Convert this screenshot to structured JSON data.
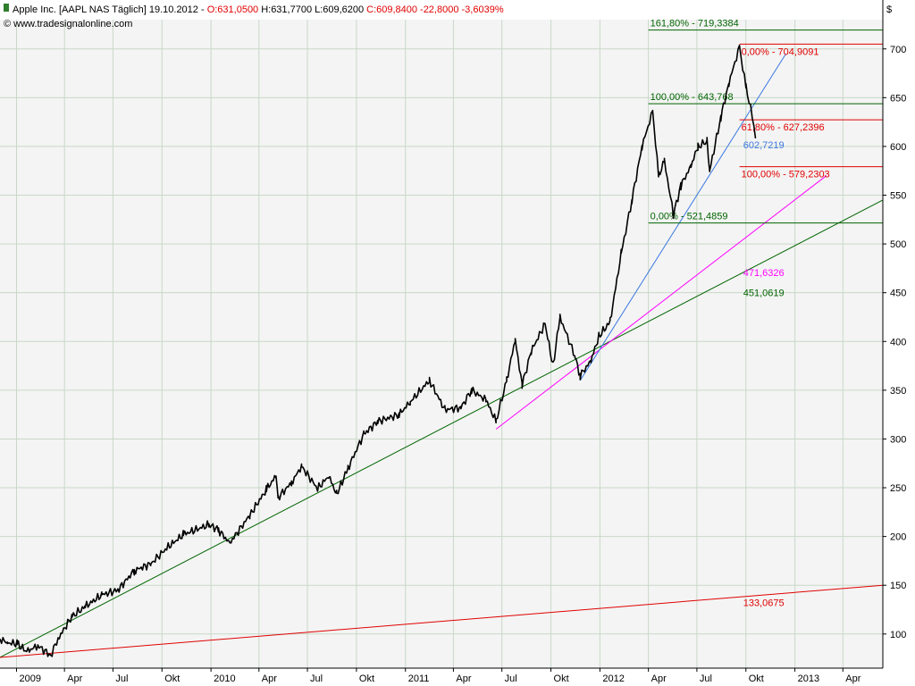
{
  "header": {
    "title": "Apple Inc. [AAPL NAS  Täglich] 19.10.2012 - ",
    "ohlc_open": "O:631,0500",
    "ohlc_high": "H:631,7700",
    "ohlc_low": "L:609,6200",
    "ohlc_close": "C:609,8400",
    "change": "-22,8000 -3,6039%",
    "copyright": "© www.tradesignalonline.com",
    "currency": "$"
  },
  "colors": {
    "plot_bg": "#f4f4f4",
    "grid": "#c8d8c8",
    "price": "#000000",
    "trend_green": "#006400",
    "trend_red": "#e00000",
    "trend_magenta": "#ff00ff",
    "trend_blue": "#3a78e0",
    "fib_green": "#006400",
    "fib_red": "#e00000",
    "header_red": "#e00000"
  },
  "chart_data": {
    "type": "line",
    "series_kind": "daily price (OHLC bars)",
    "ylim": [
      65,
      730
    ],
    "y_ticks": [
      100,
      150,
      200,
      250,
      300,
      350,
      400,
      450,
      500,
      550,
      600,
      650,
      700
    ],
    "y_tick_labels": [
      "100",
      "150",
      "200",
      "250",
      "300",
      "350",
      "400",
      "450",
      "500",
      "550",
      "600",
      "650",
      "700"
    ],
    "x_range": [
      "2008-12-01",
      "2013-06-15"
    ],
    "x_ticks": [
      {
        "label": "2009",
        "date": "2009-01-01"
      },
      {
        "label": "Apr",
        "date": "2009-04-01"
      },
      {
        "label": "Jul",
        "date": "2009-07-01"
      },
      {
        "label": "Okt",
        "date": "2009-10-01"
      },
      {
        "label": "2010",
        "date": "2010-01-01"
      },
      {
        "label": "Apr",
        "date": "2010-04-01"
      },
      {
        "label": "Jul",
        "date": "2010-07-01"
      },
      {
        "label": "Okt",
        "date": "2010-10-01"
      },
      {
        "label": "2011",
        "date": "2011-01-01"
      },
      {
        "label": "Apr",
        "date": "2011-04-01"
      },
      {
        "label": "Jul",
        "date": "2011-07-01"
      },
      {
        "label": "Okt",
        "date": "2011-10-01"
      },
      {
        "label": "2012",
        "date": "2012-01-01"
      },
      {
        "label": "Apr",
        "date": "2012-04-01"
      },
      {
        "label": "Jul",
        "date": "2012-07-01"
      },
      {
        "label": "Okt",
        "date": "2012-10-01"
      },
      {
        "label": "2013",
        "date": "2013-01-01"
      },
      {
        "label": "Apr",
        "date": "2013-04-01"
      }
    ],
    "price": [
      [
        "2008-12-01",
        95
      ],
      [
        "2008-12-15",
        91
      ],
      [
        "2009-01-02",
        90
      ],
      [
        "2009-01-20",
        82
      ],
      [
        "2009-02-10",
        88
      ],
      [
        "2009-03-06",
        78
      ],
      [
        "2009-03-20",
        95
      ],
      [
        "2009-04-15",
        118
      ],
      [
        "2009-05-10",
        128
      ],
      [
        "2009-06-10",
        140
      ],
      [
        "2009-07-10",
        145
      ],
      [
        "2009-08-10",
        165
      ],
      [
        "2009-09-10",
        172
      ],
      [
        "2009-10-10",
        188
      ],
      [
        "2009-11-10",
        202
      ],
      [
        "2009-12-28",
        212
      ],
      [
        "2010-01-15",
        207
      ],
      [
        "2010-02-05",
        193
      ],
      [
        "2010-03-15",
        222
      ],
      [
        "2010-04-15",
        248
      ],
      [
        "2010-05-03",
        262
      ],
      [
        "2010-05-07",
        240
      ],
      [
        "2010-06-01",
        255
      ],
      [
        "2010-06-20",
        272
      ],
      [
        "2010-07-20",
        249
      ],
      [
        "2010-08-10",
        262
      ],
      [
        "2010-08-25",
        243
      ],
      [
        "2010-09-15",
        270
      ],
      [
        "2010-10-15",
        305
      ],
      [
        "2010-11-10",
        318
      ],
      [
        "2010-12-20",
        325
      ],
      [
        "2011-01-10",
        338
      ],
      [
        "2011-02-15",
        360
      ],
      [
        "2011-03-16",
        330
      ],
      [
        "2011-04-15",
        332
      ],
      [
        "2011-05-05",
        350
      ],
      [
        "2011-06-01",
        340
      ],
      [
        "2011-06-20",
        318
      ],
      [
        "2011-07-10",
        360
      ],
      [
        "2011-07-26",
        402
      ],
      [
        "2011-08-08",
        355
      ],
      [
        "2011-08-25",
        390
      ],
      [
        "2011-09-20",
        418
      ],
      [
        "2011-10-05",
        375
      ],
      [
        "2011-10-18",
        425
      ],
      [
        "2011-11-15",
        385
      ],
      [
        "2011-11-25",
        365
      ],
      [
        "2011-12-15",
        380
      ],
      [
        "2011-12-30",
        405
      ],
      [
        "2012-01-20",
        420
      ],
      [
        "2012-02-10",
        490
      ],
      [
        "2012-03-01",
        545
      ],
      [
        "2012-03-20",
        600
      ],
      [
        "2012-04-09",
        636
      ],
      [
        "2012-04-20",
        570
      ],
      [
        "2012-05-01",
        585
      ],
      [
        "2012-05-18",
        530
      ],
      [
        "2012-06-01",
        560
      ],
      [
        "2012-06-20",
        580
      ],
      [
        "2012-07-03",
        600
      ],
      [
        "2012-07-20",
        605
      ],
      [
        "2012-07-25",
        575
      ],
      [
        "2012-08-15",
        630
      ],
      [
        "2012-08-30",
        665
      ],
      [
        "2012-09-19",
        702
      ],
      [
        "2012-10-01",
        660
      ],
      [
        "2012-10-10",
        640
      ],
      [
        "2012-10-19",
        610
      ]
    ],
    "trendlines": [
      {
        "color": "trend_green",
        "from": [
          "2008-12-01",
          76
        ],
        "to": [
          "2013-06-15",
          545
        ]
      },
      {
        "color": "trend_red",
        "from": [
          "2008-12-01",
          76
        ],
        "to": [
          "2013-06-15",
          150
        ]
      },
      {
        "color": "trend_magenta",
        "from": [
          "2011-06-20",
          310
        ],
        "to": [
          "2013-03-01",
          570
        ]
      },
      {
        "color": "trend_blue",
        "from": [
          "2011-11-25",
          360
        ],
        "to": [
          "2012-12-15",
          695
        ]
      }
    ],
    "fib_levels": [
      {
        "value": 719.3384,
        "label": "161,80% - 719,3384",
        "color": "fib_green",
        "start": "2012-04-01"
      },
      {
        "value": 704.9091,
        "label": "0,00% - 704,9091",
        "color": "fib_red",
        "start": "2012-09-19"
      },
      {
        "value": 643.768,
        "label": "100,00% - 643,768",
        "color": "fib_green",
        "start": "2012-04-01"
      },
      {
        "value": 627.2396,
        "label": "61,80% - 627,2396",
        "color": "fib_red",
        "start": "2012-09-19"
      },
      {
        "value": 579.2303,
        "label": "100,00% - 579,2303",
        "color": "fib_red",
        "start": "2012-09-19"
      },
      {
        "value": 521.4859,
        "label": "0,00% - 521,4859",
        "color": "fib_green",
        "start": "2012-04-01"
      }
    ],
    "annotations": [
      {
        "text": "602,7219",
        "date": "2012-10-01",
        "value": 602.7219,
        "color": "trend_blue"
      },
      {
        "text": "471,6326",
        "date": "2012-10-01",
        "value": 471.6326,
        "color": "trend_magenta"
      },
      {
        "text": "451,0619",
        "date": "2012-10-01",
        "value": 451.0619,
        "color": "trend_green"
      },
      {
        "text": "133,0675",
        "date": "2012-10-01",
        "value": 133.0675,
        "color": "trend_red"
      }
    ]
  }
}
